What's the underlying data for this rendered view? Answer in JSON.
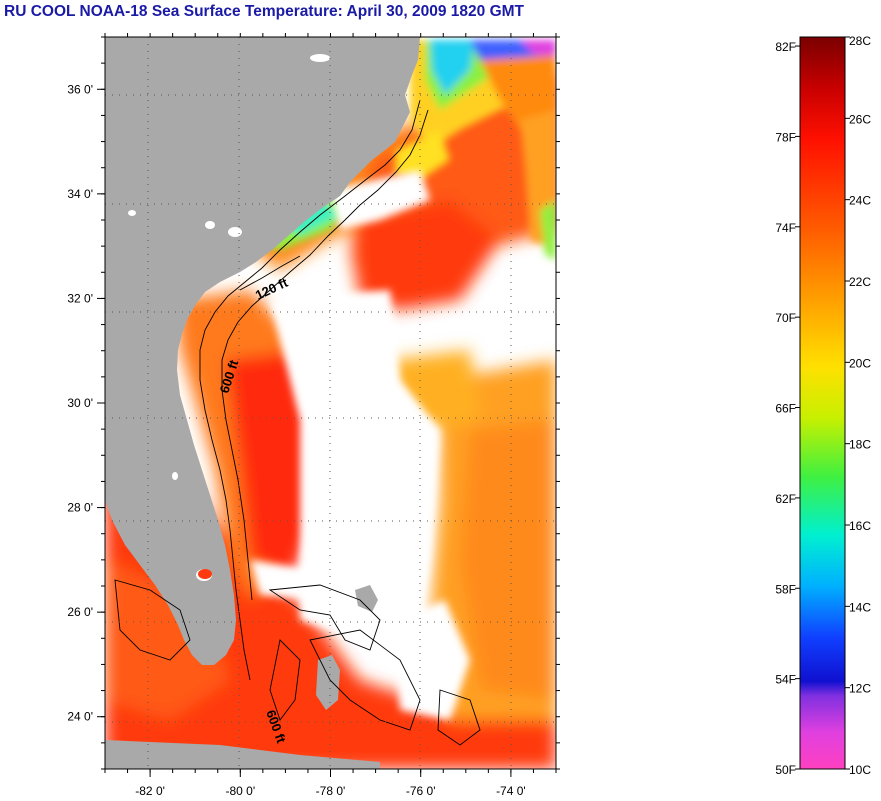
{
  "title": "RU COOL  NOAA-18  Sea Surface Temperature:  April 30, 2009 1820 GMT",
  "map": {
    "x_ticks": [
      {
        "value": -82,
        "label": "-82 0'"
      },
      {
        "value": -80,
        "label": "-80 0'"
      },
      {
        "value": -78,
        "label": "-78 0'"
      },
      {
        "value": -76,
        "label": "-76 0'"
      },
      {
        "value": -74,
        "label": "-74 0'"
      }
    ],
    "y_ticks": [
      {
        "value": 36,
        "label": "36 0'"
      },
      {
        "value": 34,
        "label": "34 0'"
      },
      {
        "value": 32,
        "label": "32 0'"
      },
      {
        "value": 30,
        "label": "30 0'"
      },
      {
        "value": 28,
        "label": "28 0'"
      },
      {
        "value": 26,
        "label": "26 0'"
      },
      {
        "value": 24,
        "label": "24 0'"
      }
    ],
    "lon_range": [
      -83,
      -73
    ],
    "lat_range": [
      23,
      37
    ],
    "contour_labels": [
      "120 ft",
      "600 ft",
      "600 ft"
    ],
    "colors": {
      "land": "#a9a9a9",
      "cloud": "#ffffff"
    }
  },
  "colorbar": {
    "fahrenheit_labels": [
      "82F",
      "78F",
      "74F",
      "70F",
      "66F",
      "62F",
      "58F",
      "54F",
      "50F"
    ],
    "celsius_labels": [
      "28C",
      "26C",
      "24C",
      "22C",
      "20C",
      "18C",
      "16C",
      "14C",
      "12C",
      "10C"
    ],
    "range_c": [
      10,
      28
    ]
  }
}
